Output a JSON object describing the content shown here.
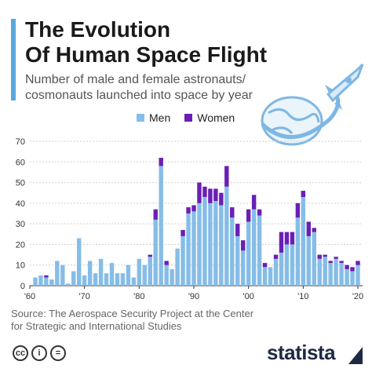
{
  "header": {
    "title_line1": "The Evolution",
    "title_line2": "Of Human Space Flight",
    "subtitle_line1": "Number of male and female astronauts/",
    "subtitle_line2": "cosmonauts launched into space by year"
  },
  "colors": {
    "men": "#86bde8",
    "women": "#6a1fb5",
    "accent": "#5aa8dc"
  },
  "source": {
    "line1": "Source: The Aerospace Security Project at the Center",
    "line2": "for Strategic and International Studies"
  },
  "footer": {
    "license_cc": "cc",
    "license_i": "i",
    "license_eq": "=",
    "brand": "statista"
  },
  "chart_data": {
    "type": "bar",
    "stacked": true,
    "x": [
      1961,
      1962,
      1963,
      1964,
      1965,
      1966,
      1967,
      1968,
      1969,
      1970,
      1971,
      1972,
      1973,
      1974,
      1975,
      1976,
      1977,
      1978,
      1979,
      1980,
      1981,
      1982,
      1983,
      1984,
      1985,
      1986,
      1987,
      1988,
      1989,
      1990,
      1991,
      1992,
      1993,
      1994,
      1995,
      1996,
      1997,
      1998,
      1999,
      2000,
      2001,
      2002,
      2003,
      2004,
      2005,
      2006,
      2007,
      2008,
      2009,
      2010,
      2011,
      2012,
      2013,
      2014,
      2015,
      2016,
      2017,
      2018,
      2019,
      2020
    ],
    "series": [
      {
        "name": "Men",
        "values": [
          4,
          5,
          4,
          3,
          12,
          10,
          1,
          7,
          23,
          5,
          12,
          6,
          13,
          6,
          11,
          6,
          6,
          10,
          4,
          13,
          10,
          14,
          32,
          58,
          10,
          8,
          18,
          24,
          35,
          36,
          40,
          43,
          40,
          41,
          39,
          48,
          33,
          24,
          17,
          31,
          37,
          34,
          9,
          9,
          13,
          16,
          20,
          20,
          33,
          43,
          24,
          26,
          13,
          14,
          11,
          13,
          11,
          8,
          7,
          10
        ],
        "name2": "",
        "values2": []
      },
      {
        "name": "Women",
        "values": [
          0,
          0,
          1,
          0,
          0,
          0,
          0,
          0,
          0,
          0,
          0,
          0,
          0,
          0,
          0,
          0,
          0,
          0,
          0,
          0,
          0,
          1,
          5,
          4,
          2,
          0,
          0,
          3,
          3,
          3,
          10,
          5,
          7,
          6,
          6,
          10,
          5,
          6,
          5,
          6,
          7,
          3,
          2,
          0,
          2,
          10,
          6,
          6,
          7,
          3,
          7,
          2,
          2,
          1,
          1,
          1,
          1,
          2,
          2,
          2
        ]
      }
    ],
    "xticks": [
      "'60",
      "'70",
      "'80",
      "'90",
      "'00",
      "'10",
      "'20"
    ],
    "ylim": [
      0,
      70
    ],
    "yticks": [
      0,
      10,
      20,
      30,
      40,
      50,
      60,
      70
    ],
    "grid": true,
    "legend_position": "top"
  }
}
